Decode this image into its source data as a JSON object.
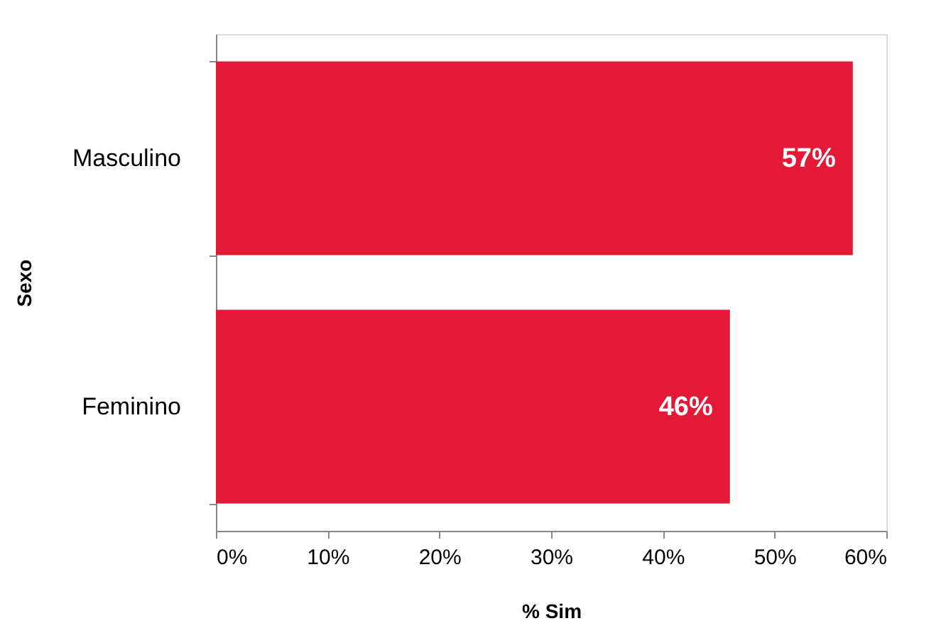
{
  "chart_data": {
    "type": "bar",
    "orientation": "horizontal",
    "xlabel": "% Sim",
    "ylabel": "Sexo",
    "categories": [
      "Masculino",
      "Feminino"
    ],
    "values": [
      57,
      46
    ],
    "color": "#e31937",
    "value_labels": [
      "57%",
      "46%"
    ],
    "xlim": [
      0,
      60
    ],
    "xticks": [
      {
        "value": 0,
        "label": "0%"
      },
      {
        "value": 10,
        "label": "10%"
      },
      {
        "value": 20,
        "label": "20%"
      },
      {
        "value": 30,
        "label": "30%"
      },
      {
        "value": 40,
        "label": "40%"
      },
      {
        "value": 50,
        "label": "50%"
      },
      {
        "value": 60,
        "label": "60%"
      }
    ],
    "grid": false
  }
}
